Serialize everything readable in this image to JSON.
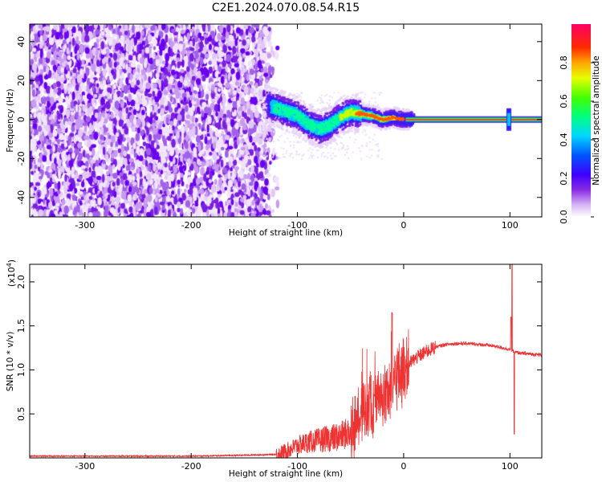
{
  "chart_data": [
    {
      "type": "heatmap",
      "title": "C2E1.2024.070.08.54.R15",
      "xlabel": "Height of straight line (km)",
      "ylabel": "Frequency (Hz)",
      "xlim": [
        -352,
        130
      ],
      "ylim": [
        -50,
        49
      ],
      "xticks": [
        -300,
        -200,
        -100,
        0,
        100
      ],
      "yticks": [
        -40,
        -20,
        0,
        20,
        40
      ],
      "xtick_labels": [
        "-300",
        "-200",
        "-100",
        "0",
        "100"
      ],
      "ytick_labels": [
        "-40",
        "-20",
        "0",
        "20",
        "40"
      ],
      "noise_region_x": [
        -352,
        -127
      ],
      "signal_trace": {
        "x": [
          -130,
          -120,
          -110,
          -100,
          -90,
          -80,
          -70,
          -60,
          -50,
          -40,
          -30,
          -20,
          -10,
          0,
          10,
          50,
          100,
          130
        ],
        "freq": [
          8,
          6,
          4,
          2,
          -2,
          -5,
          -3,
          1,
          4,
          3,
          2,
          0,
          1,
          0,
          0,
          0,
          0,
          0
        ]
      },
      "colorbar": {
        "label": "Normalized spectral amplitude",
        "range": [
          0,
          1
        ],
        "ticks": [
          0.0,
          0.2,
          0.4,
          0.6,
          0.8
        ],
        "tick_labels": [
          "0.0",
          "0.2",
          "0.4",
          "0.6",
          "0.8"
        ]
      },
      "grid": false
    },
    {
      "type": "line",
      "xlabel": "Height of straight line (km)",
      "ylabel": "SNR (10 * v/v)",
      "scale_label": "(x10",
      "scale_exponent": "4",
      "scale_close": ")",
      "xlim": [
        -352,
        130
      ],
      "ylim": [
        0,
        2.2
      ],
      "xticks": [
        -300,
        -200,
        -100,
        0,
        100
      ],
      "yticks": [
        0.5,
        1.0,
        1.5,
        2.0
      ],
      "xtick_labels": [
        "-300",
        "-200",
        "-100",
        "0",
        "100"
      ],
      "ytick_labels": [
        "0.5",
        "1.0",
        "1.5",
        "2.0"
      ],
      "series": [
        {
          "color": "#ee3333",
          "x": [
            -352,
            -300,
            -250,
            -200,
            -150,
            -120,
            -110,
            -100,
            -90,
            -80,
            -70,
            -60,
            -50,
            -45,
            -40,
            -35,
            -30,
            -25,
            -20,
            -15,
            -10,
            -5,
            0,
            10,
            20,
            30,
            40,
            50,
            60,
            70,
            80,
            90,
            100,
            105,
            110,
            120,
            130
          ],
          "y": [
            0.02,
            0.02,
            0.02,
            0.02,
            0.03,
            0.04,
            0.08,
            0.14,
            0.18,
            0.2,
            0.22,
            0.24,
            0.3,
            0.4,
            0.55,
            0.6,
            0.6,
            0.7,
            0.7,
            0.75,
            0.85,
            0.95,
            1.02,
            1.12,
            1.2,
            1.26,
            1.29,
            1.3,
            1.3,
            1.29,
            1.28,
            1.26,
            1.23,
            1.2,
            1.19,
            1.18,
            1.17
          ]
        }
      ],
      "grid": false
    }
  ]
}
